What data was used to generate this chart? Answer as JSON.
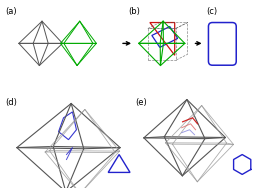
{
  "bg_color": "#ffffff",
  "label_color": "#000000",
  "labels": [
    "(a)",
    "(b)",
    "(c)",
    "(d)",
    "(e)"
  ],
  "gray_color": "#555555",
  "dark_gray": "#333333",
  "light_gray": "#999999",
  "green_color": "#00aa00",
  "blue_color": "#2222cc",
  "red_color": "#cc1111",
  "pink_color": "#dd6666",
  "light_blue": "#8888dd"
}
